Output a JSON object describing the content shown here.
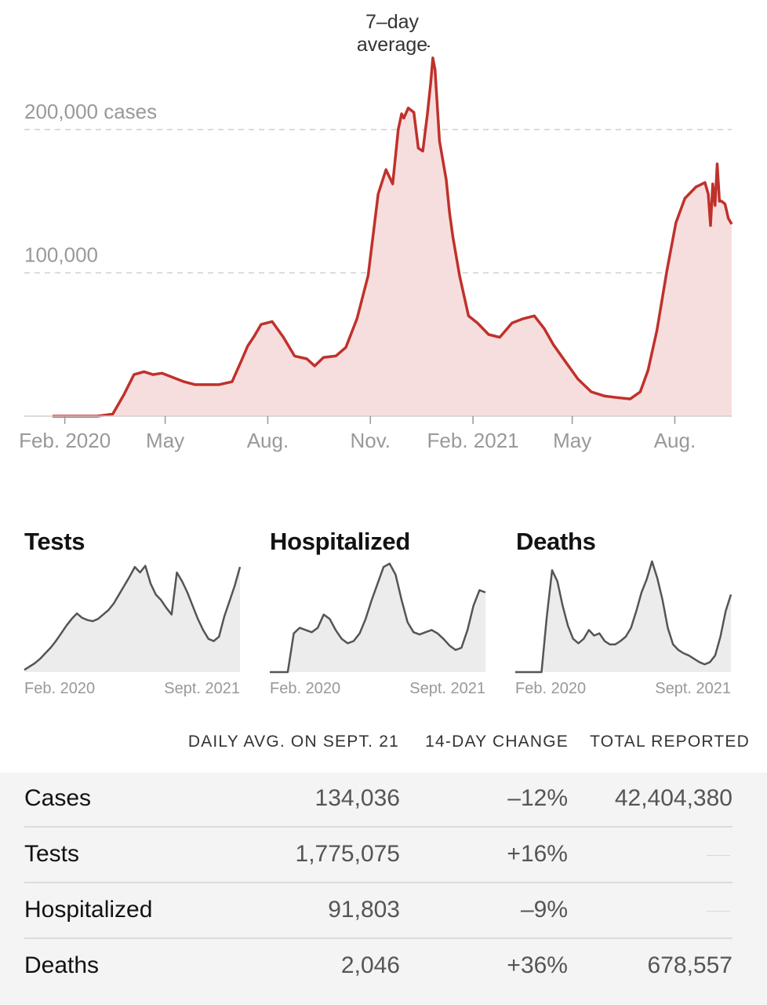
{
  "chart_data": [
    {
      "type": "area",
      "annotation": "7–day average",
      "ylim": [
        0,
        260000
      ],
      "y_ticks": [
        {
          "value": 100000,
          "label": "100,000"
        },
        {
          "value": 200000,
          "label": "200,000 cases"
        }
      ],
      "x_ticks": [
        {
          "date": "2020-02-01",
          "label": "Feb. 2020"
        },
        {
          "date": "2020-05-01",
          "label": "May"
        },
        {
          "date": "2020-08-01",
          "label": "Aug."
        },
        {
          "date": "2020-11-01",
          "label": "Nov."
        },
        {
          "date": "2021-02-01",
          "label": "Feb. 2021"
        },
        {
          "date": "2021-05-01",
          "label": "May"
        },
        {
          "date": "2021-08-01",
          "label": "Aug."
        }
      ],
      "x": [
        "2020-01-21",
        "2020-03-01",
        "2020-03-15",
        "2020-03-25",
        "2020-04-03",
        "2020-04-12",
        "2020-04-20",
        "2020-04-28",
        "2020-05-08",
        "2020-05-18",
        "2020-05-28",
        "2020-06-08",
        "2020-06-18",
        "2020-06-30",
        "2020-07-08",
        "2020-07-14",
        "2020-07-20",
        "2020-07-26",
        "2020-08-05",
        "2020-08-15",
        "2020-08-25",
        "2020-09-05",
        "2020-09-12",
        "2020-09-20",
        "2020-10-01",
        "2020-10-10",
        "2020-10-20",
        "2020-10-30",
        "2020-11-08",
        "2020-11-15",
        "2020-11-21",
        "2020-11-26",
        "2020-11-29",
        "2020-12-01",
        "2020-12-05",
        "2020-12-10",
        "2020-12-14",
        "2020-12-18",
        "2020-12-22",
        "2020-12-25",
        "2020-12-27",
        "2020-12-29",
        "2021-01-02",
        "2021-01-08",
        "2021-01-11",
        "2021-01-14",
        "2021-01-20",
        "2021-01-28",
        "2021-02-05",
        "2021-02-15",
        "2021-02-25",
        "2021-03-08",
        "2021-03-18",
        "2021-03-28",
        "2021-04-06",
        "2021-04-14",
        "2021-04-24",
        "2021-05-06",
        "2021-05-18",
        "2021-05-30",
        "2021-06-10",
        "2021-06-22",
        "2021-07-01",
        "2021-07-08",
        "2021-07-16",
        "2021-07-25",
        "2021-08-02",
        "2021-08-10",
        "2021-08-20",
        "2021-08-28",
        "2021-08-31",
        "2021-09-02",
        "2021-09-04",
        "2021-09-06",
        "2021-09-08",
        "2021-09-10",
        "2021-09-12",
        "2021-09-15",
        "2021-09-18",
        "2021-09-21"
      ],
      "values": [
        0,
        0,
        1500,
        15000,
        29000,
        31000,
        29000,
        30000,
        27000,
        24000,
        22000,
        22000,
        22000,
        24000,
        38000,
        49000,
        56000,
        64000,
        66000,
        55000,
        42000,
        40000,
        35000,
        41000,
        42000,
        48000,
        68000,
        98000,
        155000,
        172000,
        162000,
        200000,
        211000,
        208000,
        215000,
        212000,
        187000,
        185000,
        210000,
        232000,
        250000,
        242000,
        192000,
        165000,
        142000,
        125000,
        98000,
        70000,
        65000,
        57000,
        55000,
        65000,
        68000,
        70000,
        61000,
        50000,
        39000,
        26000,
        17000,
        14000,
        13000,
        12000,
        17000,
        32000,
        60000,
        102000,
        135000,
        152000,
        160000,
        163000,
        155000,
        133000,
        162000,
        147000,
        176000,
        150000,
        150000,
        148000,
        138000,
        134000
      ]
    },
    {
      "type": "area",
      "title": "Tests",
      "x_labels": [
        "Feb. 2020",
        "Sept. 2021"
      ],
      "values": [
        0.02,
        0.05,
        0.08,
        0.12,
        0.17,
        0.22,
        0.28,
        0.35,
        0.42,
        0.48,
        0.53,
        0.49,
        0.47,
        0.46,
        0.48,
        0.52,
        0.56,
        0.62,
        0.7,
        0.78,
        0.86,
        0.95,
        0.9,
        0.96,
        0.8,
        0.7,
        0.65,
        0.58,
        0.52,
        0.9,
        0.82,
        0.72,
        0.6,
        0.48,
        0.38,
        0.3,
        0.28,
        0.32,
        0.5,
        0.64,
        0.78,
        0.95
      ]
    },
    {
      "type": "area",
      "title": "Hospitalized",
      "x_labels": [
        "Feb. 2020",
        "Sept. 2021"
      ],
      "values": [
        0,
        0,
        0,
        0,
        0.35,
        0.4,
        0.38,
        0.36,
        0.4,
        0.52,
        0.48,
        0.38,
        0.3,
        0.26,
        0.28,
        0.35,
        0.48,
        0.65,
        0.8,
        0.95,
        0.98,
        0.88,
        0.65,
        0.45,
        0.36,
        0.34,
        0.36,
        0.38,
        0.35,
        0.3,
        0.24,
        0.2,
        0.22,
        0.38,
        0.6,
        0.74,
        0.72
      ]
    },
    {
      "type": "area",
      "title": "Deaths",
      "x_labels": [
        "Feb. 2020",
        "Sept. 2021"
      ],
      "values": [
        0,
        0,
        0,
        0,
        0,
        0,
        0.5,
        0.92,
        0.82,
        0.6,
        0.42,
        0.3,
        0.26,
        0.3,
        0.38,
        0.33,
        0.35,
        0.28,
        0.25,
        0.25,
        0.28,
        0.32,
        0.4,
        0.55,
        0.72,
        0.84,
        1.0,
        0.85,
        0.65,
        0.4,
        0.25,
        0.2,
        0.17,
        0.15,
        0.12,
        0.09,
        0.07,
        0.09,
        0.15,
        0.32,
        0.55,
        0.7
      ]
    }
  ],
  "table": {
    "headers": [
      "DAILY AVG. ON SEPT. 21",
      "14-DAY CHANGE",
      "TOTAL REPORTED"
    ],
    "rows": [
      {
        "label": "Cases",
        "daily_avg": "134,036",
        "change": "–12%",
        "total": "42,404,380"
      },
      {
        "label": "Tests",
        "daily_avg": "1,775,075",
        "change": "+16%",
        "total": "—"
      },
      {
        "label": "Hospitalized",
        "daily_avg": "91,803",
        "change": "–9%",
        "total": "—"
      },
      {
        "label": "Deaths",
        "daily_avg": "2,046",
        "change": "+36%",
        "total": "678,557"
      }
    ]
  },
  "colors": {
    "line": "#c0312b",
    "area": "#f7dede",
    "small_line": "#555555",
    "small_area": "#ececec"
  }
}
